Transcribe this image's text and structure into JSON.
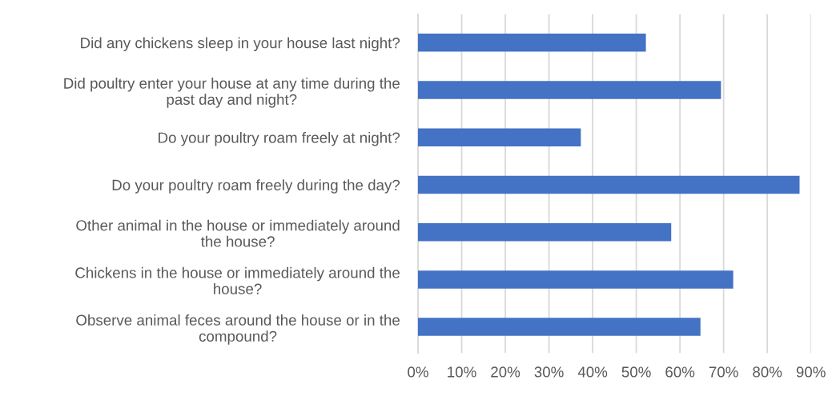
{
  "chart_data": {
    "type": "bar",
    "orientation": "horizontal",
    "categories": [
      "Did any chickens sleep in your house last night?",
      "Did poultry enter your house at any time during the\npast day and night?",
      "Do your poultry roam freely at night?",
      "Do your poultry roam freely during the day?",
      "Other animal in the house or immediately around\nthe house?",
      "Chickens in the house or immediately around the\nhouse?",
      "Observe animal feces around the house or in the\ncompound?"
    ],
    "values": [
      52.2,
      69.4,
      37.3,
      87.4,
      58.0,
      72.2,
      64.7
    ],
    "color": "#4472c4",
    "xlim": [
      0,
      90
    ],
    "xticks": [
      {
        "value": 0,
        "label": "0%"
      },
      {
        "value": 10,
        "label": "10%"
      },
      {
        "value": 20,
        "label": "20%"
      },
      {
        "value": 30,
        "label": "30%"
      },
      {
        "value": 40,
        "label": "40%"
      },
      {
        "value": 50,
        "label": "50%"
      },
      {
        "value": 60,
        "label": "60%"
      },
      {
        "value": 70,
        "label": "70%"
      },
      {
        "value": 80,
        "label": "80%"
      },
      {
        "value": 90,
        "label": "90%"
      }
    ],
    "grid": "x"
  }
}
